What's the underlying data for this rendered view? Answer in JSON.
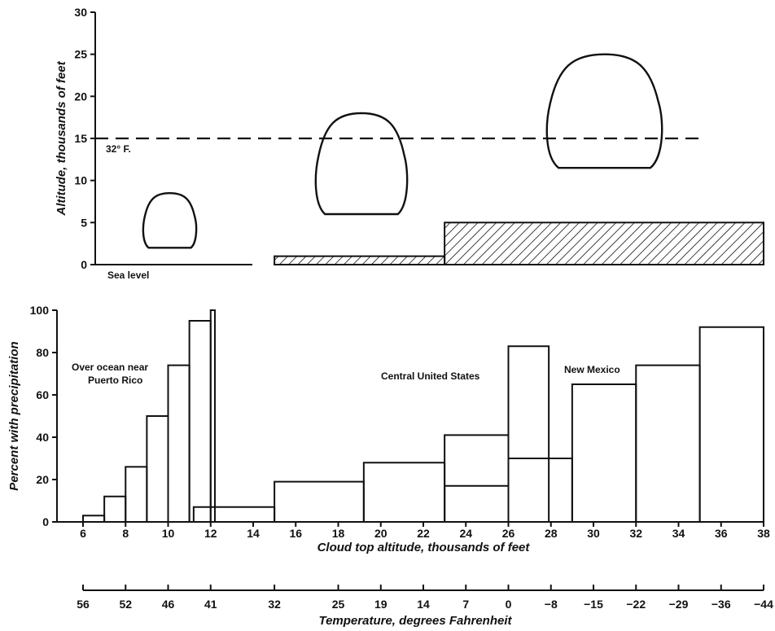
{
  "chart_data": [
    {
      "type": "diagram",
      "ylabel": "Altitude, thousands of feet",
      "ylim": [
        0,
        30
      ],
      "yticks": [
        0,
        5,
        10,
        15,
        20,
        25,
        30
      ],
      "freezing_level": {
        "altitude": 15,
        "label": "32° F."
      },
      "sea_level_label": "Sea level",
      "clouds": [
        {
          "base": 2,
          "top": 8.5
        },
        {
          "base": 6,
          "top": 18
        },
        {
          "base": 11.5,
          "top": 25
        }
      ],
      "terrain": [
        {
          "from_x": 15,
          "to_x": 23,
          "height": 1
        },
        {
          "from_x": 23,
          "to_x": 38,
          "height": 5
        }
      ]
    },
    {
      "type": "bar",
      "xlabel": "Cloud top altitude, thousands of feet",
      "ylabel": "Percent with precipitation",
      "xlim": [
        6,
        38
      ],
      "ylim": [
        0,
        100
      ],
      "xticks": [
        6,
        8,
        10,
        12,
        14,
        16,
        18,
        20,
        22,
        24,
        26,
        28,
        30,
        32,
        34,
        36,
        38
      ],
      "yticks": [
        0,
        20,
        40,
        60,
        80,
        100
      ],
      "series": [
        {
          "name": "Over ocean near Puerto Rico",
          "bins": [
            {
              "from": 6,
              "to": 7,
              "value": 3
            },
            {
              "from": 7,
              "to": 8,
              "value": 12
            },
            {
              "from": 8,
              "to": 9,
              "value": 26
            },
            {
              "from": 9,
              "to": 10,
              "value": 50
            },
            {
              "from": 10,
              "to": 11,
              "value": 74
            },
            {
              "from": 11,
              "to": 12,
              "value": 95
            },
            {
              "from": 12,
              "to": 12.2,
              "value": 100
            }
          ]
        },
        {
          "name": "Central United States",
          "bins": [
            {
              "from": 11.2,
              "to": 15,
              "value": 7
            },
            {
              "from": 15,
              "to": 19.2,
              "value": 19
            },
            {
              "from": 19.2,
              "to": 23,
              "value": 28
            },
            {
              "from": 23,
              "to": 26,
              "value": 41
            },
            {
              "from": 26,
              "to": 27.9,
              "value": 83
            }
          ]
        },
        {
          "name": "New Mexico",
          "bins": [
            {
              "from": 23,
              "to": 26,
              "value": 17
            },
            {
              "from": 26,
              "to": 29,
              "value": 30
            },
            {
              "from": 29,
              "to": 32,
              "value": 65
            },
            {
              "from": 32,
              "to": 35,
              "value": 74
            },
            {
              "from": 35,
              "to": 38,
              "value": 92
            }
          ]
        }
      ]
    },
    {
      "type": "axis",
      "xlabel": "Temperature, degrees Fahrenheit",
      "ticks": [
        {
          "label": "56",
          "x": 6
        },
        {
          "label": "52",
          "x": 8
        },
        {
          "label": "46",
          "x": 10
        },
        {
          "label": "41",
          "x": 12
        },
        {
          "label": "32",
          "x": 15
        },
        {
          "label": "25",
          "x": 18
        },
        {
          "label": "19",
          "x": 20
        },
        {
          "label": "14",
          "x": 22
        },
        {
          "label": "7",
          "x": 24
        },
        {
          "label": "0",
          "x": 26
        },
        {
          "label": "−8",
          "x": 28
        },
        {
          "label": "−15",
          "x": 30
        },
        {
          "label": "−22",
          "x": 32
        },
        {
          "label": "−29",
          "x": 34
        },
        {
          "label": "−36",
          "x": 36
        },
        {
          "label": "−44",
          "x": 38
        }
      ]
    }
  ]
}
